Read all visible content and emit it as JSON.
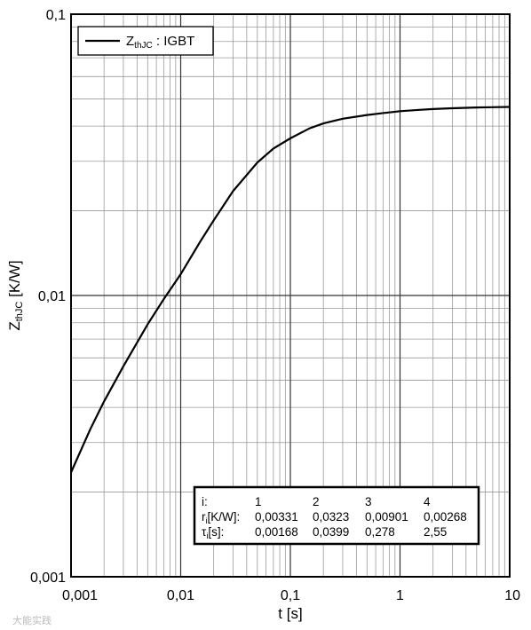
{
  "chart_data": {
    "type": "line",
    "xscale": "log",
    "yscale": "log",
    "xlim": [
      0.001,
      10
    ],
    "ylim": [
      0.001,
      0.1
    ],
    "xticks": [
      "0,001",
      "0,01",
      "0,1",
      "1",
      "10"
    ],
    "yticks": [
      "0,001",
      "0,01",
      "0,1"
    ],
    "xlabel": "t [s]",
    "ylabel": {
      "main": "Z",
      "sub": "thJC",
      "unit": " [K/W]"
    },
    "grid": true,
    "legend_position": "top-left",
    "series": [
      {
        "name": {
          "main": "Z",
          "sub": "thJC",
          "rest": " : IGBT"
        },
        "color": "#000000",
        "x": [
          0.001,
          0.0015,
          0.002,
          0.003,
          0.005,
          0.007,
          0.01,
          0.015,
          0.02,
          0.03,
          0.05,
          0.07,
          0.1,
          0.15,
          0.2,
          0.3,
          0.5,
          0.7,
          1,
          1.5,
          2,
          3,
          5,
          7,
          10
        ],
        "y": [
          0.00235,
          0.00335,
          0.0042,
          0.0056,
          0.0079,
          0.0097,
          0.0119,
          0.0155,
          0.0185,
          0.0235,
          0.0297,
          0.0333,
          0.0362,
          0.0393,
          0.0409,
          0.0425,
          0.0438,
          0.0445,
          0.0452,
          0.0457,
          0.046,
          0.0463,
          0.0466,
          0.0467,
          0.0468
        ]
      }
    ],
    "table": {
      "header": [
        "i:",
        "1",
        "2",
        "3",
        "4"
      ],
      "rows": [
        {
          "label_main": "r",
          "label_sub": "i",
          "label_rest": "[K/W]:",
          "values": [
            "0,00331",
            "0,0323",
            "0,00901",
            "0,00268"
          ]
        },
        {
          "label_main": "τ",
          "label_sub": "i",
          "label_rest": "[s]:",
          "values": [
            "0,00168",
            "0,0399",
            "0,278",
            "2,55"
          ]
        }
      ]
    }
  },
  "watermark": "大能实践"
}
